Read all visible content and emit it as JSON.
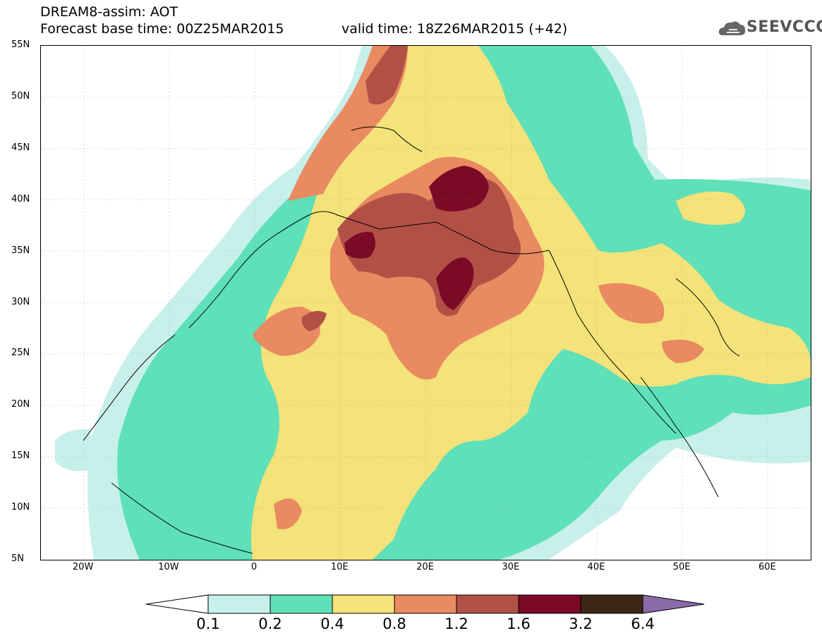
{
  "header": {
    "line1": "DREAM8-assim: AOT",
    "line2": "Forecast base time: 00Z25MAR2015",
    "valid": "valid time: 18Z26MAR2015 (+42)"
  },
  "logo": {
    "text": "SEEVCCC",
    "icon": "cloud-logo-icon"
  },
  "axes": {
    "lat_labels": [
      "55N",
      "50N",
      "45N",
      "40N",
      "35N",
      "30N",
      "25N",
      "20N",
      "15N",
      "10N",
      "5N"
    ],
    "lon_labels": [
      "20W",
      "10W",
      "0",
      "10E",
      "20E",
      "30E",
      "40E",
      "50E",
      "60E"
    ],
    "lat_range": [
      5,
      55
    ],
    "lon_range": [
      -25,
      65
    ]
  },
  "legend": {
    "labels": [
      "0.1",
      "0.2",
      "0.4",
      "0.8",
      "1.2",
      "1.6",
      "3.2",
      "6.4"
    ],
    "colors": [
      "#ffffff",
      "#c8f0ea",
      "#5ee0b8",
      "#f4e27a",
      "#e98a60",
      "#b25046",
      "#7a0a26",
      "#3e2616",
      "#8a6aa8"
    ]
  },
  "map": {
    "field": "AOT",
    "colors": {
      "c01": "#c8f0ea",
      "c02": "#5ee0b8",
      "c04": "#f4e27a",
      "c08": "#e98a60",
      "c12": "#b25046",
      "c16": "#7a0a26"
    }
  }
}
